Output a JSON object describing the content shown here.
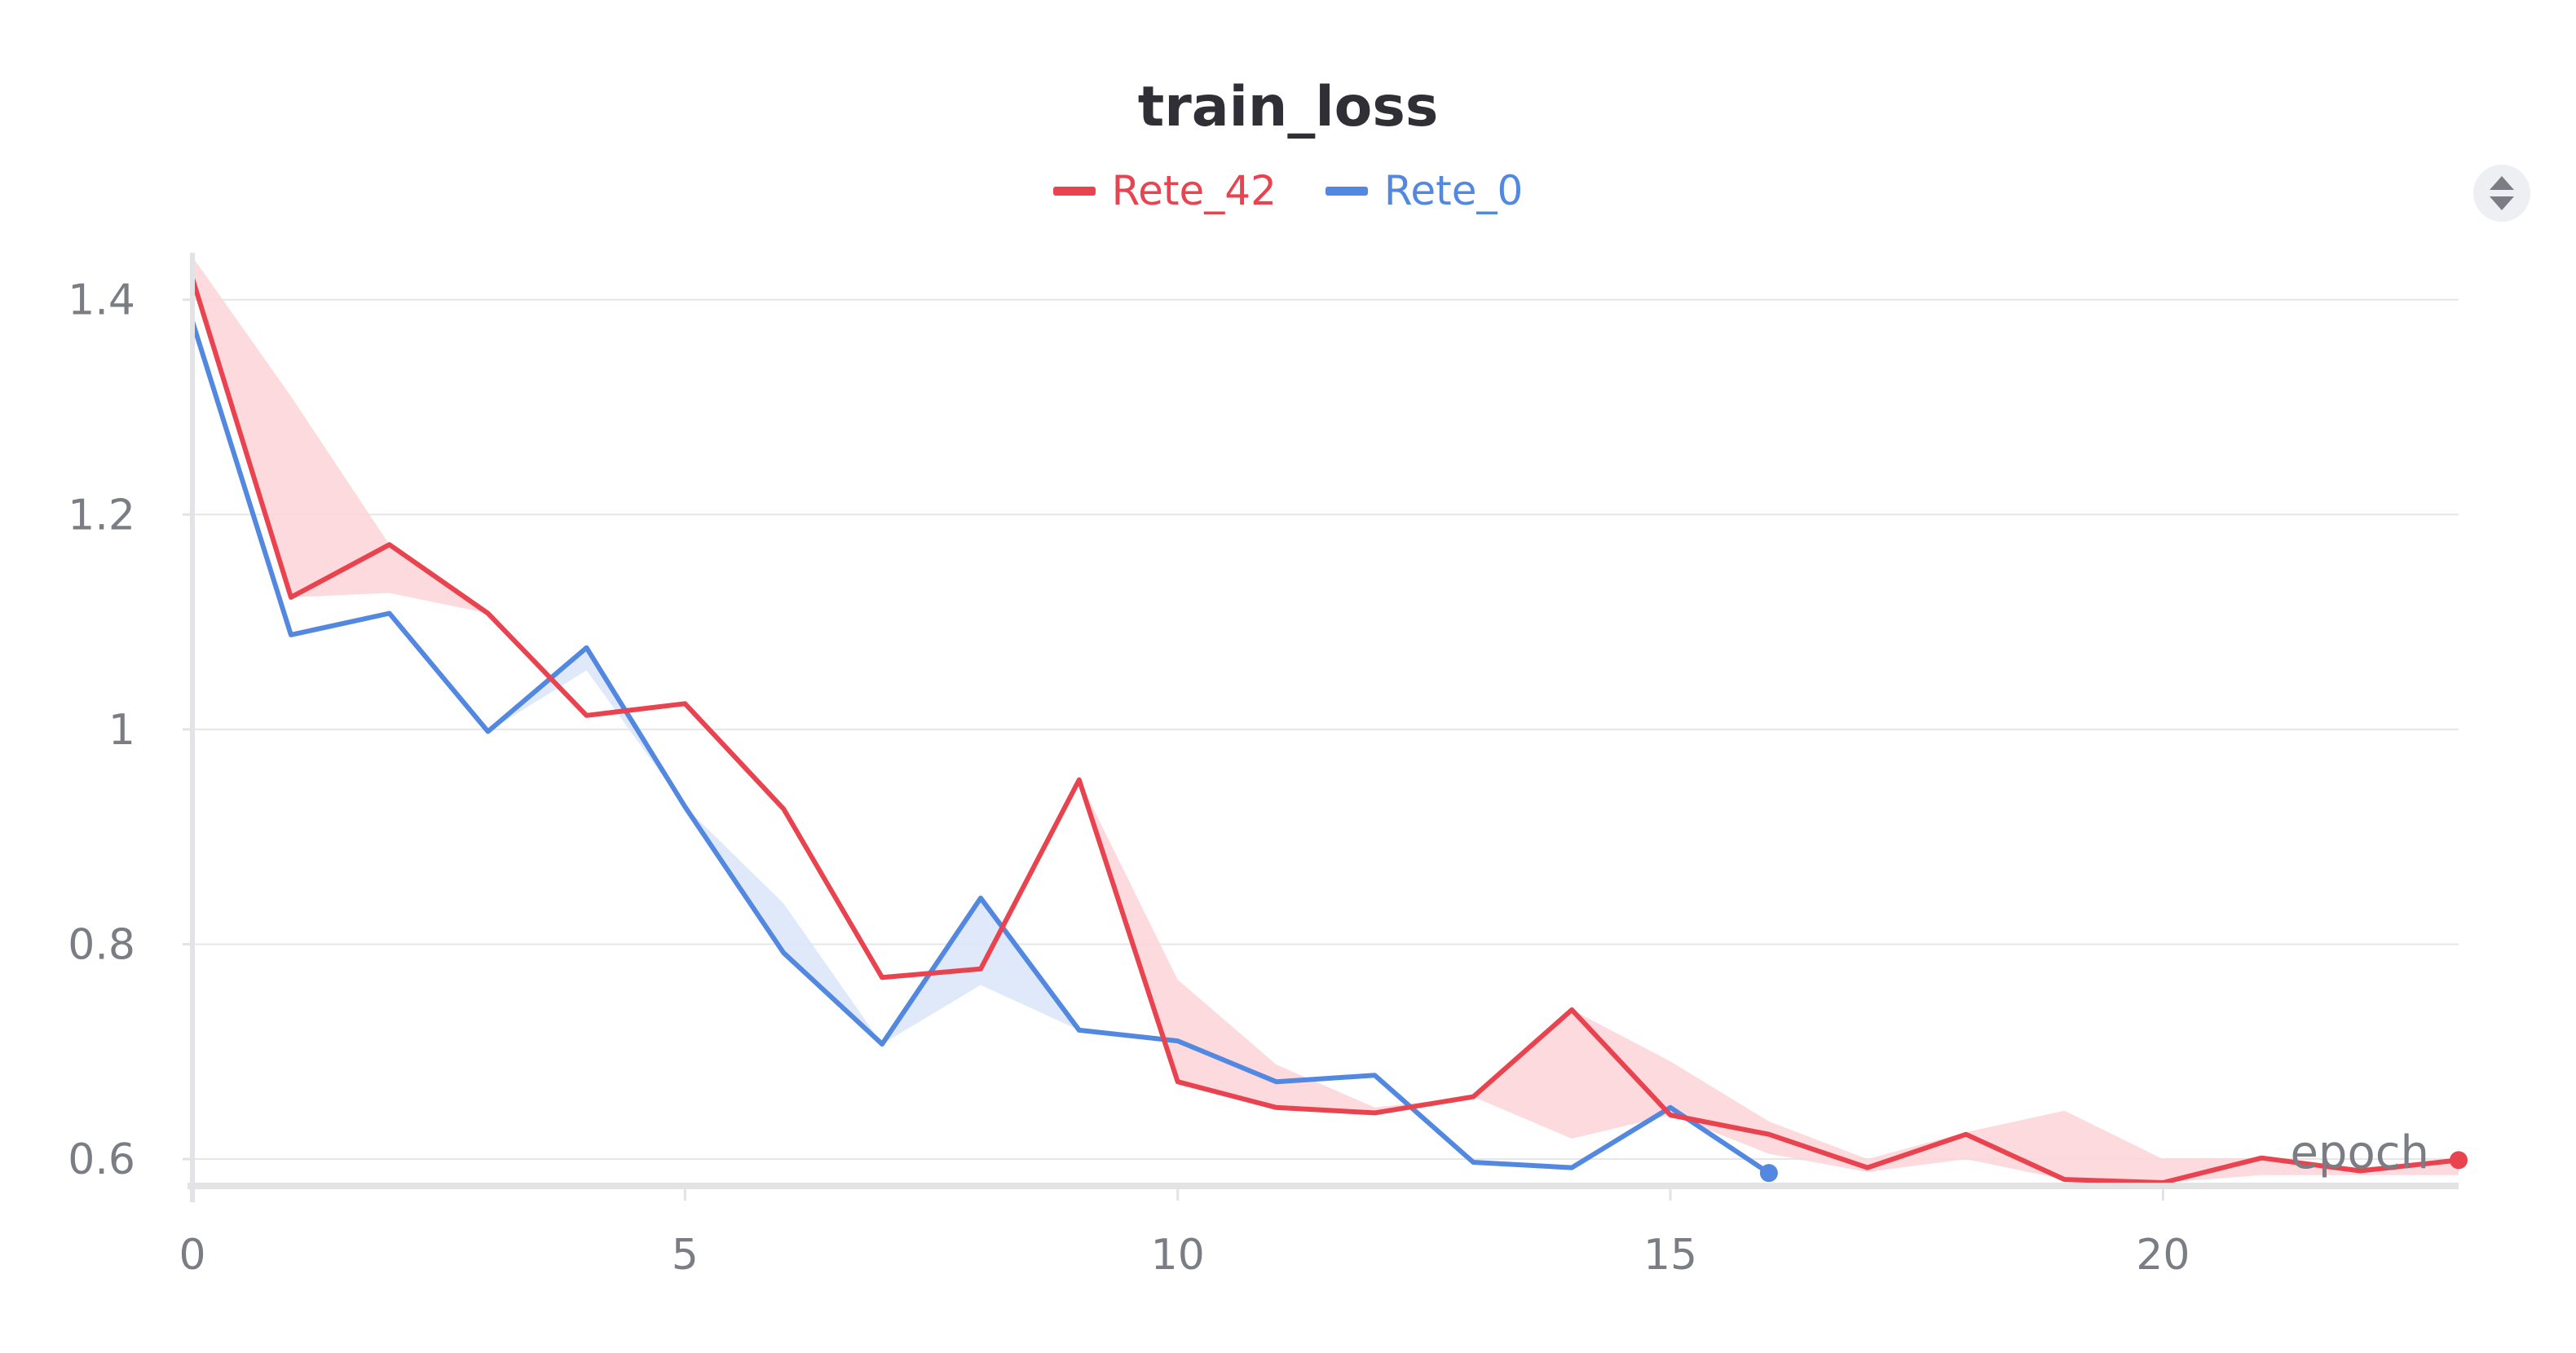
{
  "chart_data": {
    "type": "line",
    "title": "train_loss",
    "xlabel": "epoch",
    "ylabel": "",
    "xlim": [
      0,
      23
    ],
    "ylim": [
      0.575,
      1.44
    ],
    "x_ticks": [
      0,
      5,
      10,
      15,
      20
    ],
    "x_tick_labels": [
      "0",
      "5",
      "10",
      "15",
      "20"
    ],
    "y_ticks": [
      0.6,
      0.8,
      1.0,
      1.2,
      1.4
    ],
    "y_tick_labels": [
      "0.6",
      "0.8",
      "1",
      "1.2",
      "1.4"
    ],
    "grid": true,
    "legend_position": "top-center",
    "series": [
      {
        "name": "Rete_42",
        "color": "#e8434f",
        "band_color": "#fbd4d8",
        "x": [
          0,
          1,
          2,
          3,
          4,
          5,
          6,
          7,
          8,
          9,
          10,
          11,
          12,
          13,
          14,
          15,
          16,
          17,
          18,
          19,
          20,
          21,
          22,
          23
        ],
        "values": [
          1.42,
          1.123,
          1.172,
          1.108,
          1.013,
          1.024,
          0.926,
          0.769,
          0.777,
          0.953,
          0.672,
          0.648,
          0.643,
          0.658,
          0.739,
          0.641,
          0.623,
          0.592,
          0.623,
          0.581,
          0.578,
          0.601,
          0.589,
          0.599
        ],
        "band_upper": [
          1.44,
          1.31,
          1.172,
          1.108,
          1.013,
          1.024,
          0.926,
          0.769,
          0.777,
          0.953,
          0.767,
          0.688,
          0.648,
          0.658,
          0.739,
          0.691,
          0.635,
          0.6,
          0.625,
          0.645,
          0.6,
          0.601,
          0.592,
          0.599
        ],
        "band_lower": [
          1.42,
          1.123,
          1.127,
          1.108,
          1.013,
          1.024,
          0.926,
          0.769,
          0.777,
          0.953,
          0.672,
          0.648,
          0.643,
          0.658,
          0.619,
          0.641,
          0.605,
          0.588,
          0.6,
          0.581,
          0.578,
          0.585,
          0.585,
          0.585
        ]
      },
      {
        "name": "Rete_0",
        "color": "#5388e0",
        "band_color": "#d9e5f8",
        "x": [
          0,
          1,
          2,
          3,
          4,
          5,
          6,
          7,
          8,
          9,
          10,
          11,
          12,
          13,
          14,
          15,
          16
        ],
        "values": [
          1.38,
          1.088,
          1.108,
          0.998,
          1.076,
          0.928,
          0.792,
          0.707,
          0.843,
          0.72,
          0.71,
          0.672,
          0.678,
          0.597,
          0.592,
          0.648,
          0.587
        ],
        "band_upper": [
          1.38,
          1.088,
          1.108,
          0.998,
          1.076,
          0.928,
          0.838,
          0.707,
          0.843,
          0.72,
          0.71,
          0.672,
          0.678,
          0.597,
          0.592,
          0.648,
          0.587
        ],
        "band_lower": [
          1.38,
          1.088,
          1.108,
          0.998,
          1.055,
          0.928,
          0.792,
          0.707,
          0.762,
          0.72,
          0.71,
          0.672,
          0.678,
          0.597,
          0.592,
          0.648,
          0.587
        ]
      }
    ]
  }
}
